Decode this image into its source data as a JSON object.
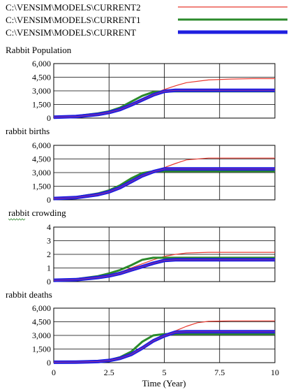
{
  "chart_data": {
    "type": "line",
    "legend": {
      "placement": "top",
      "entries": [
        {
          "label": "C:\\VENSIM\\MODELS\\CURRENT2",
          "color": "#e8392f",
          "width": 1.2
        },
        {
          "label": "C:\\VENSIM\\MODELS\\CURRENT1",
          "color": "#2b8a2b",
          "width": 3
        },
        {
          "label": "C:\\VENSIM\\MODELS\\CURRENT",
          "color": "#1f1fe0",
          "width": 5
        }
      ]
    },
    "xlabel": "Time (Year)",
    "xlim": [
      0,
      10
    ],
    "xticks": [
      0,
      2.5,
      5,
      7.5,
      10
    ],
    "xtick_labels": [
      "0",
      "2.5",
      "5",
      "7.5",
      "10"
    ],
    "grid": true,
    "charts": [
      {
        "title": "Rabbit Population",
        "ylim": [
          0,
          6000
        ],
        "yticks": [
          0,
          1500,
          3000,
          4500,
          6000
        ],
        "ytick_labels": [
          "0",
          "1,500",
          "3,000",
          "4,500",
          "6,000"
        ],
        "series": [
          {
            "x": [
              0,
              1,
              2,
              2.5,
              3,
              3.5,
              4,
              4.5,
              5,
              5.5,
              6,
              7,
              8,
              9,
              10
            ],
            "y": [
              100,
              180,
              420,
              650,
              1000,
              1550,
              2150,
              2700,
              3150,
              3550,
              3900,
              4200,
              4300,
              4350,
              4350
            ]
          },
          {
            "x": [
              0,
              1,
              2,
              2.5,
              3,
              3.5,
              4,
              4.5,
              5,
              5.5,
              6,
              7,
              8,
              9,
              10
            ],
            "y": [
              100,
              220,
              520,
              750,
              1150,
              1800,
              2450,
              2870,
              2950,
              2950,
              2950,
              2950,
              2950,
              2950,
              2950
            ]
          },
          {
            "x": [
              0,
              1,
              2,
              2.5,
              3,
              3.5,
              4,
              4.5,
              5,
              5.5,
              6,
              7,
              8,
              9,
              10
            ],
            "y": [
              100,
              170,
              400,
              620,
              950,
              1450,
              2000,
              2550,
              2950,
              3050,
              3050,
              3050,
              3050,
              3050,
              3050
            ]
          },
          {
            "x": [
              0,
              1,
              2,
              2.5,
              3,
              3.5,
              4,
              4.5,
              5,
              5.5,
              6,
              7,
              8,
              9,
              10
            ],
            "y": [
              100,
              170,
              400,
              620,
              950,
              1450,
              2000,
              2550,
              2950,
              3050,
              3050,
              3050,
              3050,
              3050,
              3050
            ]
          }
        ]
      },
      {
        "title": "rabbit births",
        "ylim": [
          0,
          6000
        ],
        "yticks": [
          0,
          1500,
          3000,
          4500,
          6000
        ],
        "ytick_labels": [
          "0",
          "1,500",
          "3,000",
          "4,500",
          "6,000"
        ],
        "series": [
          {
            "x": [
              0,
              1,
              2,
              2.5,
              3,
              3.5,
              4,
              4.5,
              5,
              5.5,
              6,
              7,
              8,
              9,
              10
            ],
            "y": [
              150,
              250,
              600,
              900,
              1400,
              2100,
              2800,
              3200,
              3550,
              4000,
              4400,
              4600,
              4600,
              4600,
              4600
            ]
          },
          {
            "x": [
              0,
              1,
              2,
              2.5,
              3,
              3.5,
              4,
              4.5,
              5,
              5.5,
              6,
              7,
              8,
              9,
              10
            ],
            "y": [
              150,
              300,
              700,
              1050,
              1600,
              2350,
              2950,
              3150,
              3150,
              3150,
              3150,
              3150,
              3150,
              3150,
              3150
            ]
          },
          {
            "x": [
              0,
              1,
              2,
              2.5,
              3,
              3.5,
              4,
              4.5,
              5,
              5.5,
              6,
              7,
              8,
              9,
              10
            ],
            "y": [
              150,
              250,
              580,
              880,
              1350,
              2000,
              2650,
              3100,
              3400,
              3400,
              3400,
              3400,
              3400,
              3400,
              3400
            ]
          },
          {
            "x": [
              0,
              1,
              2,
              2.5,
              3,
              3.5,
              4,
              4.5,
              5,
              5.5,
              6,
              7,
              8,
              9,
              10
            ],
            "y": [
              150,
              250,
              580,
              880,
              1350,
              2000,
              2650,
              3100,
              3400,
              3400,
              3400,
              3400,
              3400,
              3400,
              3400
            ]
          }
        ]
      },
      {
        "title": "rabbit crowding",
        "ylim": [
          0,
          4
        ],
        "yticks": [
          0,
          1,
          2,
          3,
          4
        ],
        "ytick_labels": [
          "0",
          "1",
          "2",
          "3",
          "4"
        ],
        "series": [
          {
            "x": [
              0,
              1,
              2,
              2.5,
              3,
              3.5,
              4,
              4.5,
              5,
              5.5,
              6,
              7,
              8,
              9,
              10
            ],
            "y": [
              0.1,
              0.15,
              0.3,
              0.45,
              0.7,
              1.0,
              1.3,
              1.6,
              1.85,
              2.0,
              2.1,
              2.15,
              2.15,
              2.15,
              2.15
            ]
          },
          {
            "x": [
              0,
              1,
              2,
              2.5,
              3,
              3.5,
              4,
              4.5,
              5,
              5.5,
              6,
              7,
              8,
              9,
              10
            ],
            "y": [
              0.1,
              0.18,
              0.4,
              0.6,
              0.85,
              1.2,
              1.6,
              1.75,
              1.75,
              1.75,
              1.75,
              1.75,
              1.75,
              1.75,
              1.75
            ]
          },
          {
            "x": [
              0,
              1,
              2,
              2.5,
              3,
              3.5,
              4,
              4.5,
              5,
              5.5,
              6,
              7,
              8,
              9,
              10
            ],
            "y": [
              0.1,
              0.14,
              0.3,
              0.42,
              0.6,
              0.85,
              1.1,
              1.35,
              1.55,
              1.6,
              1.6,
              1.6,
              1.6,
              1.6,
              1.6
            ]
          },
          {
            "x": [
              0,
              1,
              2,
              2.5,
              3,
              3.5,
              4,
              4.5,
              5,
              5.5,
              6,
              7,
              8,
              9,
              10
            ],
            "y": [
              0.1,
              0.14,
              0.3,
              0.42,
              0.6,
              0.85,
              1.1,
              1.35,
              1.55,
              1.6,
              1.6,
              1.6,
              1.6,
              1.6,
              1.6
            ]
          }
        ]
      },
      {
        "title": "rabbit deaths",
        "ylim": [
          0,
          6000
        ],
        "yticks": [
          0,
          1500,
          3000,
          4500,
          6000
        ],
        "ytick_labels": [
          "0",
          "1,500",
          "3,000",
          "4,500",
          "6,000"
        ],
        "series": [
          {
            "x": [
              0,
              1,
              2,
              2.5,
              3,
              3.5,
              4,
              4.5,
              5,
              5.5,
              6,
              6.5,
              7,
              8,
              9,
              10
            ],
            "y": [
              50,
              60,
              120,
              250,
              500,
              900,
              1500,
              2400,
              3000,
              3500,
              4000,
              4400,
              4550,
              4600,
              4600,
              4600
            ]
          },
          {
            "x": [
              0,
              1,
              2,
              2.5,
              3,
              3.5,
              4,
              4.5,
              5,
              5.5,
              6,
              7,
              8,
              9,
              10
            ],
            "y": [
              50,
              70,
              150,
              280,
              600,
              1200,
              2300,
              3000,
              3150,
              3150,
              3150,
              3150,
              3150,
              3150,
              3150
            ]
          },
          {
            "x": [
              0,
              1,
              2,
              2.5,
              3,
              3.5,
              4,
              4.5,
              5,
              5.5,
              6,
              7,
              8,
              9,
              10
            ],
            "y": [
              50,
              60,
              120,
              240,
              480,
              900,
              1600,
              2400,
              2950,
              3350,
              3400,
              3400,
              3400,
              3400,
              3400
            ]
          },
          {
            "x": [
              0,
              1,
              2,
              2.5,
              3,
              3.5,
              4,
              4.5,
              5,
              5.5,
              6,
              7,
              8,
              9,
              10
            ],
            "y": [
              50,
              60,
              120,
              240,
              480,
              900,
              1600,
              2400,
              2950,
              3350,
              3400,
              3400,
              3400,
              3400,
              3400
            ]
          }
        ]
      }
    ],
    "series_styles": [
      {
        "color": "#e8392f",
        "width": 1.2
      },
      {
        "color": "#2b8a2b",
        "width": 3
      },
      {
        "color": "#1f1fe0",
        "width": 5
      },
      {
        "color": "#8b2fa0",
        "width": 1.2
      }
    ]
  }
}
